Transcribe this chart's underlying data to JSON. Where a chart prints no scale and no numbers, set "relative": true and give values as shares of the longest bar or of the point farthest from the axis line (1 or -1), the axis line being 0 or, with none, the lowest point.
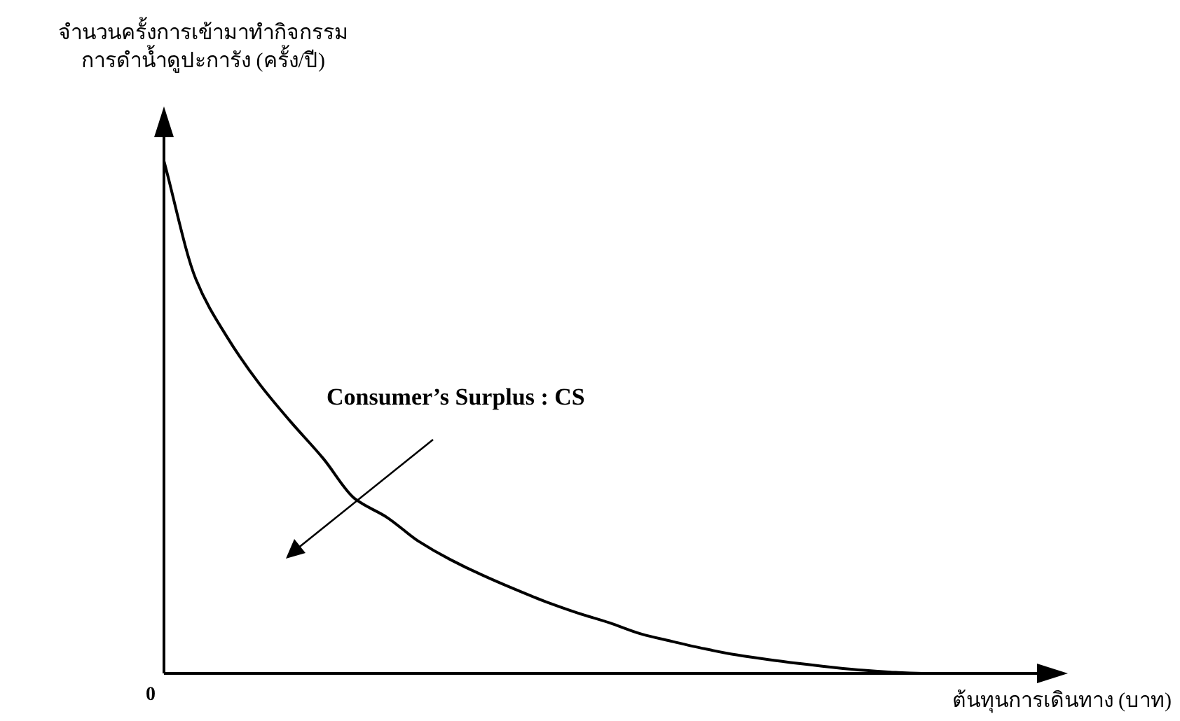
{
  "chart_data": {
    "type": "line",
    "relative": true,
    "ylabel": "จำนวนครั้งการเข้ามาทำกิจกรรม\nการดำน้ำดูปะการัง (ครั้ง/ปี)",
    "xlabel": "ต้นทุนการเดินทาง (บาท)",
    "annotations": [
      "Consumer’s Surplus : CS",
      "0"
    ],
    "categories": [
      null,
      null,
      null,
      null,
      null,
      null,
      null,
      null,
      null,
      null,
      null,
      null,
      null,
      null,
      null,
      null,
      null,
      null,
      null,
      null,
      null,
      null,
      null,
      null,
      null,
      null
    ],
    "series": [
      {
        "color": "#000000",
        "values": [
          1.0,
          0.77,
          0.655,
          0.565,
          0.49,
          0.42,
          0.341,
          0.305,
          0.258,
          0.222,
          0.192,
          0.165,
          0.14,
          0.118,
          0.099,
          0.077,
          0.062,
          0.048,
          0.036,
          0.027,
          0.019,
          0.012,
          0.006,
          0.002,
          0,
          0
        ]
      }
    ]
  }
}
